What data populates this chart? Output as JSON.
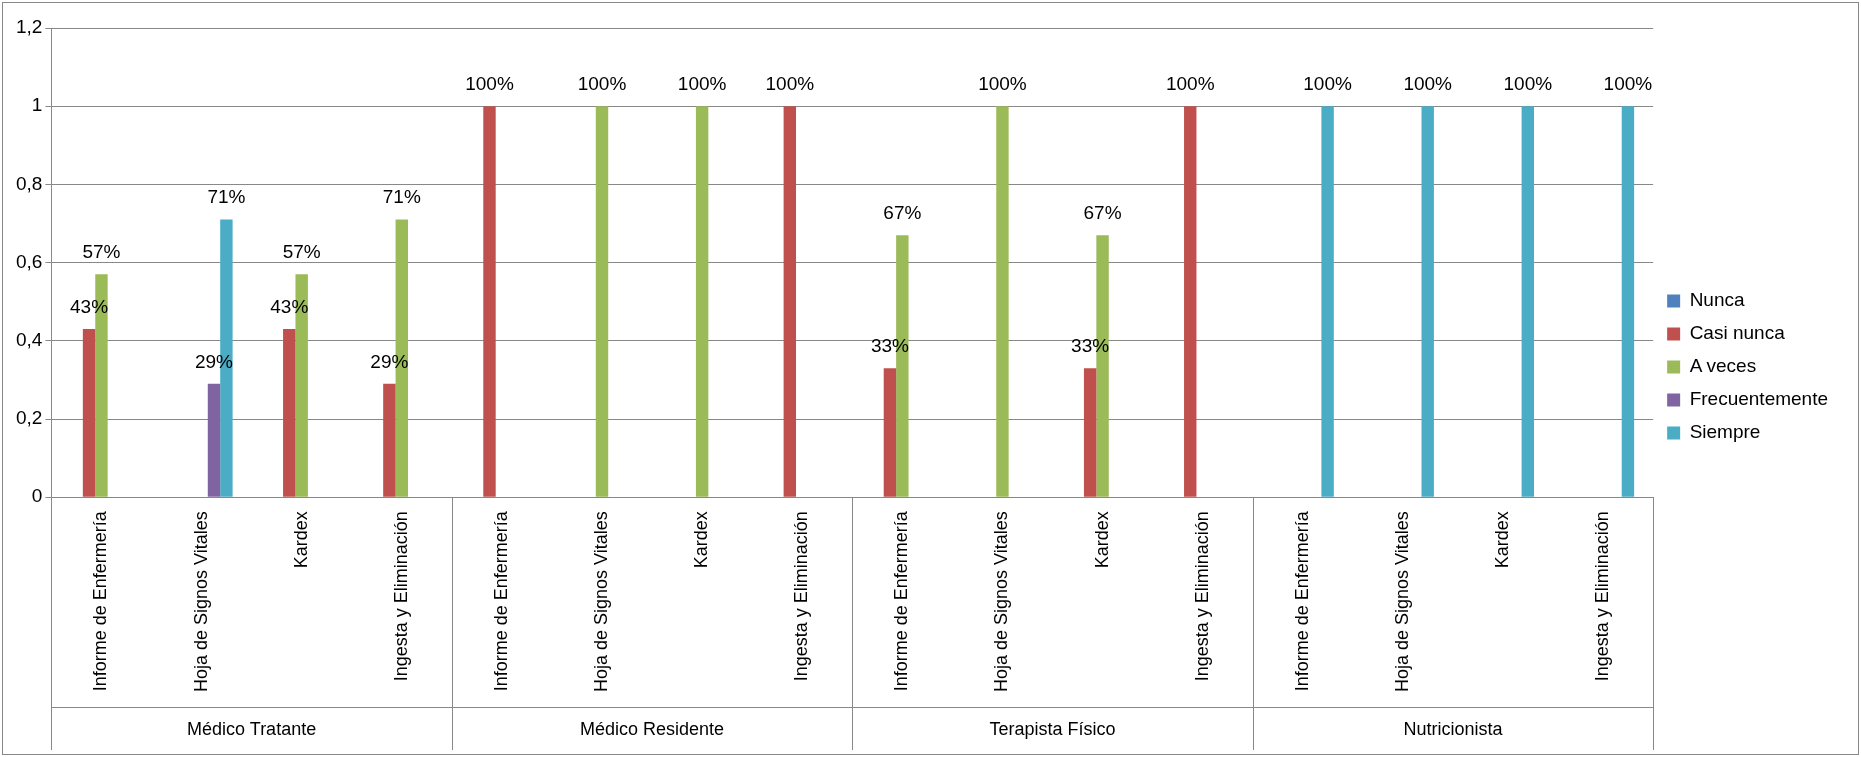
{
  "chart_data": {
    "type": "bar",
    "categories": [
      "Informe de Enfermería",
      "Hoja de Signos Vitales",
      "Kardex",
      "Ingesta y Eliminación",
      "Informe de Enfermería",
      "Hoja de Signos Vitales",
      "Kardex",
      "Ingesta y Eliminación",
      "Informe de Enfermería",
      "Hoja de Signos Vitales",
      "Kardex",
      "Ingesta y Eliminación",
      "Informe de Enfermería",
      "Hoja de Signos Vitales",
      "Kardex",
      "Ingesta y Eliminación"
    ],
    "series": [
      {
        "name": "Nunca",
        "color": "#4f81bd",
        "values": [
          null,
          null,
          null,
          null,
          null,
          null,
          null,
          null,
          null,
          null,
          null,
          null,
          null,
          null,
          null,
          null
        ],
        "value_labels": [
          null,
          null,
          null,
          null,
          null,
          null,
          null,
          null,
          null,
          null,
          null,
          null,
          null,
          null,
          null,
          null
        ]
      },
      {
        "name": "Casi nunca",
        "color": "#c0504d",
        "values": [
          0.43,
          null,
          0.43,
          0.29,
          1,
          null,
          null,
          1,
          0.33,
          null,
          0.33,
          1,
          null,
          null,
          null,
          null
        ],
        "value_labels": [
          "43%",
          null,
          "43%",
          "29%",
          "100%",
          null,
          null,
          "100%",
          "33%",
          null,
          "33%",
          "100%",
          null,
          null,
          null,
          null
        ]
      },
      {
        "name": "A veces",
        "color": "#9bbb59",
        "values": [
          0.57,
          null,
          0.57,
          0.71,
          null,
          1,
          1,
          null,
          0.67,
          1,
          0.67,
          null,
          null,
          null,
          null,
          null
        ],
        "value_labels": [
          "57%",
          null,
          "57%",
          "71%",
          null,
          "100%",
          "100%",
          null,
          "67%",
          "100%",
          "67%",
          null,
          null,
          null,
          null,
          null
        ]
      },
      {
        "name": "Frecuentemente",
        "color": "#8064a2",
        "values": [
          null,
          0.29,
          null,
          null,
          null,
          null,
          null,
          null,
          null,
          null,
          null,
          null,
          null,
          null,
          null,
          null
        ],
        "value_labels": [
          null,
          "29%",
          null,
          null,
          null,
          null,
          null,
          null,
          null,
          null,
          null,
          null,
          null,
          null,
          null,
          null
        ]
      },
      {
        "name": "Siempre",
        "color": "#4bacc6",
        "values": [
          null,
          0.71,
          null,
          null,
          null,
          null,
          null,
          null,
          null,
          null,
          null,
          null,
          1,
          1,
          1,
          1
        ],
        "value_labels": [
          null,
          "71%",
          null,
          null,
          null,
          null,
          null,
          null,
          null,
          null,
          null,
          null,
          "100%",
          "100%",
          "100%",
          "100%"
        ]
      }
    ],
    "annotations": [
      "Médico Tratante",
      "Médico Residente",
      "Terapista Físico",
      "Nutricionista"
    ],
    "ylim": [
      0,
      1.2
    ],
    "yticks": [
      0,
      {
        "value": 0.2,
        "label": "0,2"
      },
      {
        "value": 0.4,
        "label": "0,4"
      },
      {
        "value": 0.6,
        "label": "0,6"
      },
      {
        "value": 0.8,
        "label": "0,8"
      },
      1,
      {
        "value": 1.2,
        "label": "1,2"
      }
    ],
    "grid": "y",
    "legend": "right"
  }
}
